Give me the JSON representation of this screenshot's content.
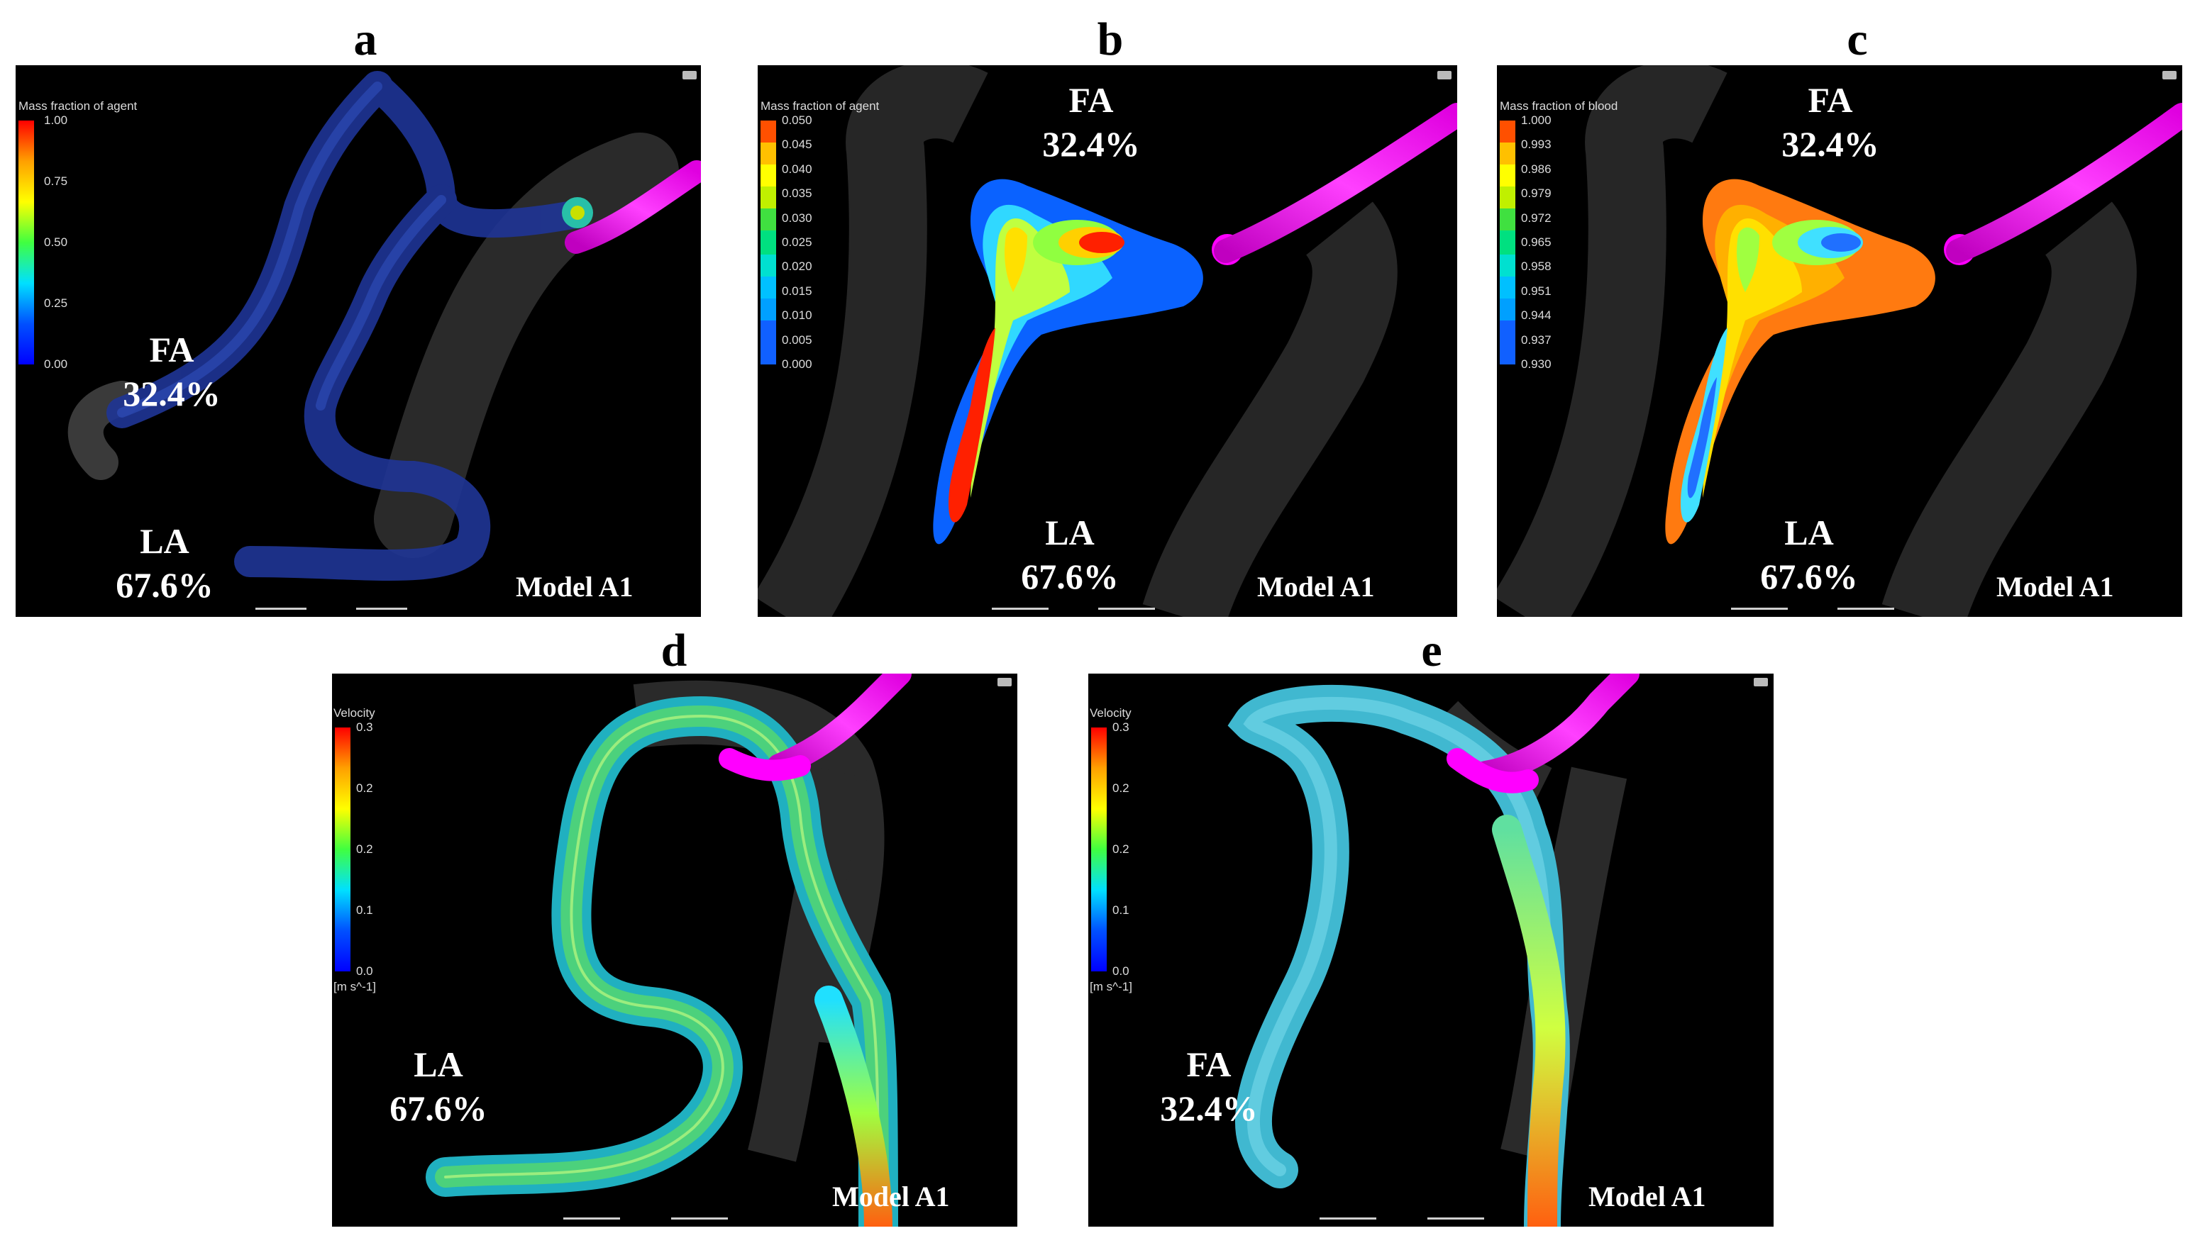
{
  "panels": {
    "a": {
      "letter": "a",
      "colorbar": {
        "title": "Mass fraction of agent",
        "ticks": [
          "1.00",
          "0.75",
          "0.50",
          "0.25",
          "0.00"
        ]
      },
      "fa": {
        "label": "FA",
        "value": "32.4%"
      },
      "la": {
        "label": "LA",
        "value": "67.6%"
      },
      "model": "Model A1"
    },
    "b": {
      "letter": "b",
      "colorbar": {
        "title": "Mass fraction of agent",
        "ticks": [
          "0.050",
          "0.045",
          "0.040",
          "0.035",
          "0.030",
          "0.025",
          "0.020",
          "0.015",
          "0.010",
          "0.005",
          "0.000"
        ]
      },
      "fa": {
        "label": "FA",
        "value": "32.4%"
      },
      "la": {
        "label": "LA",
        "value": "67.6%"
      },
      "model": "Model A1"
    },
    "c": {
      "letter": "c",
      "colorbar": {
        "title": "Mass fraction of blood",
        "ticks": [
          "1.000",
          "0.993",
          "0.986",
          "0.979",
          "0.972",
          "0.965",
          "0.958",
          "0.951",
          "0.944",
          "0.937",
          "0.930"
        ]
      },
      "fa": {
        "label": "FA",
        "value": "32.4%"
      },
      "la": {
        "label": "LA",
        "value": "67.6%"
      },
      "model": "Model A1"
    },
    "d": {
      "letter": "d",
      "colorbar": {
        "title": "Velocity",
        "ticks": [
          "0.3",
          "0.2",
          "0.2",
          "0.1",
          "0.0"
        ],
        "unit": "[m s^-1]"
      },
      "la": {
        "label": "LA",
        "value": "67.6%"
      },
      "model": "Model A1"
    },
    "e": {
      "letter": "e",
      "colorbar": {
        "title": "Velocity",
        "ticks": [
          "0.3",
          "0.2",
          "0.2",
          "0.1",
          "0.0"
        ],
        "unit": "[m s^-1]"
      },
      "fa": {
        "label": "FA",
        "value": "32.4%"
      },
      "model": "Model A1"
    }
  },
  "colors": {
    "background": "#000000",
    "catheter": "#ff00ff",
    "vessel_agent": "#1c2f8a",
    "vessel_shadow": "#3a3a3a"
  }
}
